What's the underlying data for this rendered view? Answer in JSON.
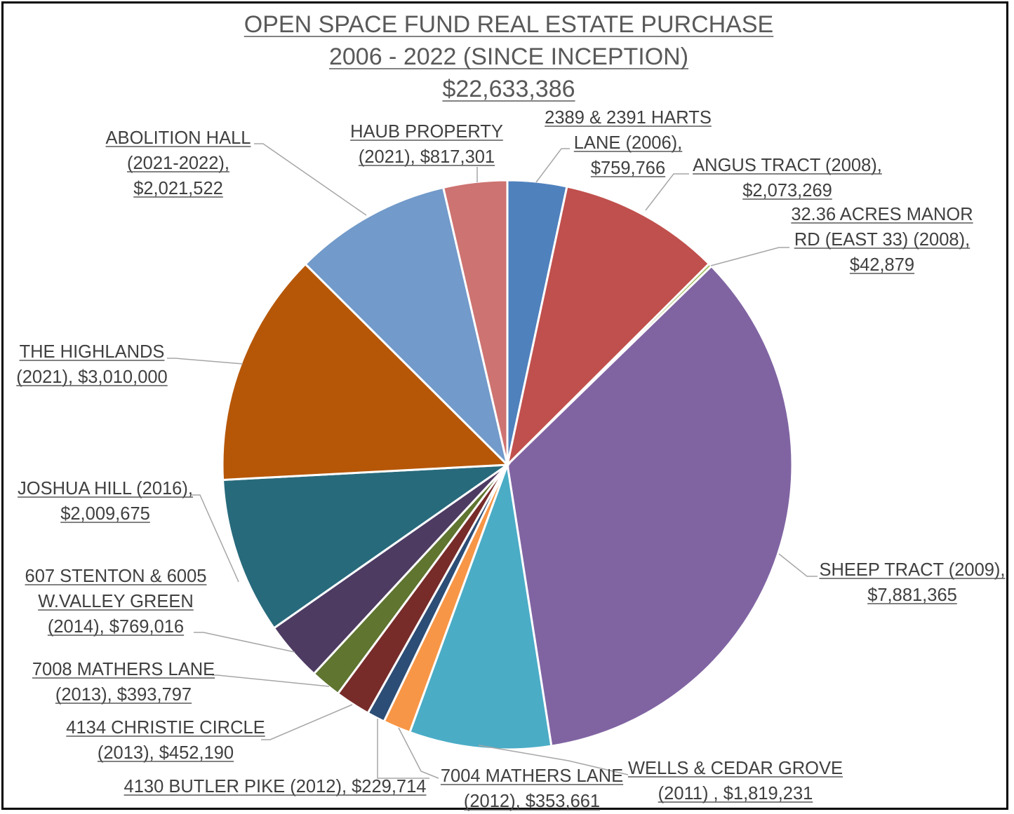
{
  "chart_data": {
    "type": "pie",
    "title": [
      "OPEN SPACE FUND REAL ESTATE PURCHASE",
      "2006 - 2022 (SINCE INCEPTION)",
      "$22,633,386"
    ],
    "legend": "none",
    "slices": [
      {
        "lines": [
          "2389 & 2391 HARTS",
          "LANE (2006),",
          "$759,766"
        ],
        "value": 759766,
        "color": "#4f81bd"
      },
      {
        "lines": [
          "ANGUS TRACT (2008),",
          "$2,073,269"
        ],
        "value": 2073269,
        "color": "#c0504d"
      },
      {
        "lines": [
          "32.36 ACRES MANOR",
          "RD (EAST 33) (2008),",
          "$42,879"
        ],
        "value": 42879,
        "color": "#9bbb59"
      },
      {
        "lines": [
          "SHEEP TRACT  (2009),",
          "$7,881,365"
        ],
        "value": 7881365,
        "color": "#8064a2"
      },
      {
        "lines": [
          "WELLS & CEDAR GROVE",
          "(2011) ,  $1,819,231"
        ],
        "value": 1819231,
        "color": "#4bacc6"
      },
      {
        "lines": [
          "7004 MATHERS LANE",
          "(2012),  $353,661"
        ],
        "value": 353661,
        "color": "#f79646"
      },
      {
        "lines": [
          "4130 BUTLER PIKE (2012),  $229,714"
        ],
        "value": 229714,
        "color": "#2c4d75"
      },
      {
        "lines": [
          "4134 CHRISTIE CIRCLE",
          "(2013),  $452,190"
        ],
        "value": 452190,
        "color": "#772c2a"
      },
      {
        "lines": [
          "7008 MATHERS LANE",
          "(2013),  $393,797"
        ],
        "value": 393797,
        "color": "#5f7530"
      },
      {
        "lines": [
          "607 STENTON & 6005",
          "W.VALLEY GREEN",
          "(2014),  $769,016"
        ],
        "value": 769016,
        "color": "#4d3b62"
      },
      {
        "lines": [
          "JOSHUA HILL (2016),",
          "$2,009,675"
        ],
        "value": 2009675,
        "color": "#276a7c"
      },
      {
        "lines": [
          "THE HIGHLANDS",
          "(2021),  $3,010,000"
        ],
        "value": 3010000,
        "color": "#b65708"
      },
      {
        "lines": [
          "ABOLITION HALL",
          "(2021-2022),",
          "$2,021,522"
        ],
        "value": 2021522,
        "color": "#729aca"
      },
      {
        "lines": [
          "HAUB PROPERTY",
          "(2021),  $817,301"
        ],
        "value": 817301,
        "color": "#cd7371"
      }
    ]
  }
}
